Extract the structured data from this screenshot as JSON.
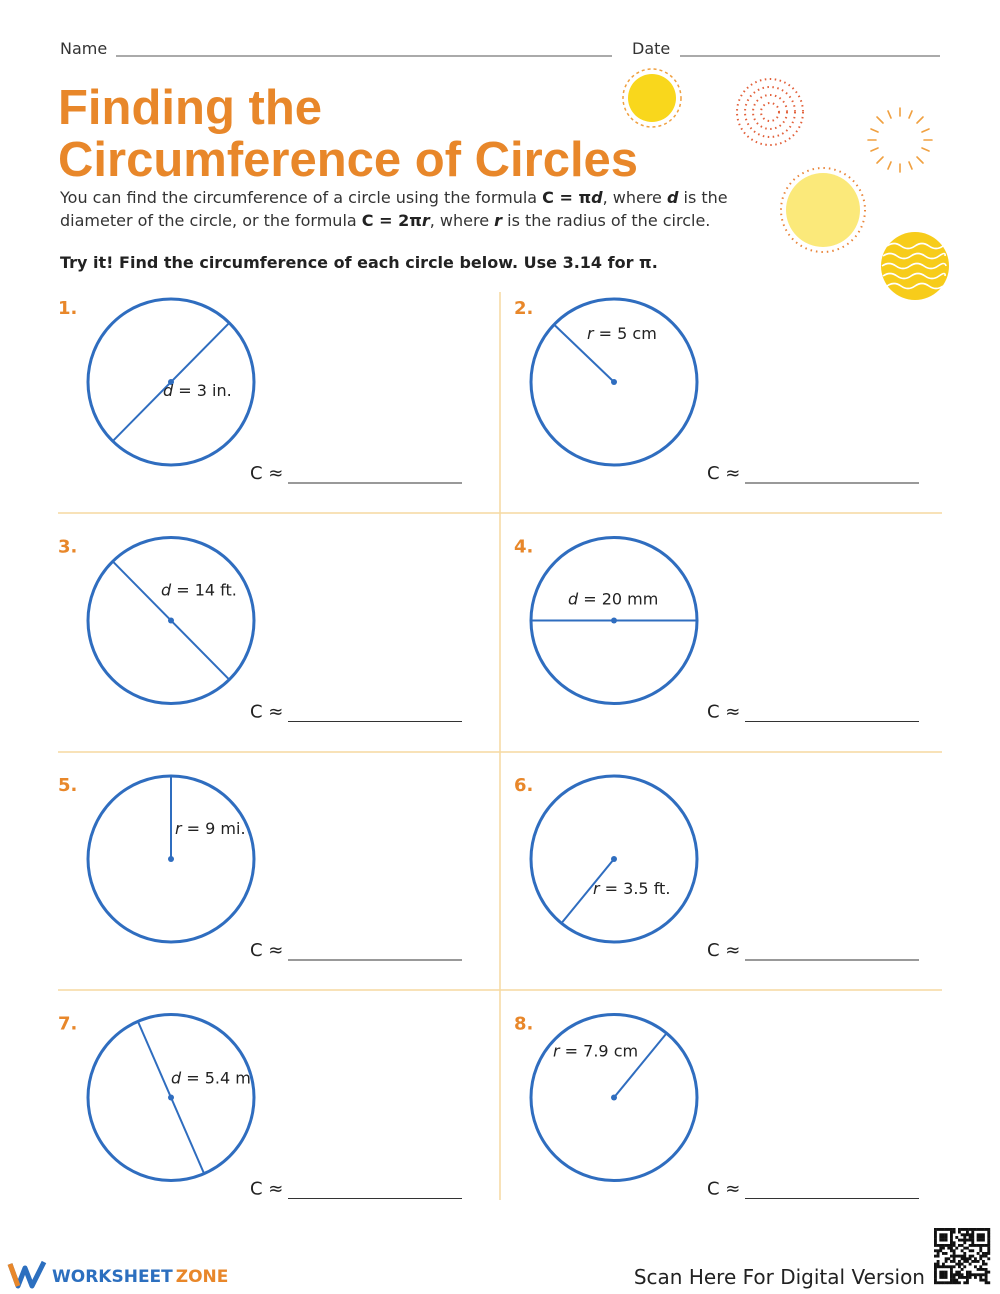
{
  "header": {
    "name_label": "Name",
    "date_label": "Date"
  },
  "title": [
    "Finding the",
    "Circumference of Circles"
  ],
  "intro": {
    "line1": [
      "You can find the circumference of a circle using the formula ",
      "C = π",
      "d",
      ", where ",
      "d",
      " is the"
    ],
    "line2": [
      "diameter of the circle, or the formula ",
      "C = 2π",
      "r",
      ", where ",
      "r",
      " is the radius of the circle."
    ]
  },
  "instructions": "Try it! Find the circumference of each circle below. Use 3.14 for π.",
  "problems": [
    {
      "number": "1.",
      "var": "d",
      "rest": " = 3 in.",
      "answer_label": "C ≈"
    },
    {
      "number": "2.",
      "var": "r",
      "rest": " = 5 cm",
      "answer_label": "C ≈"
    },
    {
      "number": "3.",
      "var": "d",
      "rest": " = 14 ft.",
      "answer_label": "C ≈"
    },
    {
      "number": "4.",
      "var": "d",
      "rest": " = 20 mm",
      "answer_label": "C ≈"
    },
    {
      "number": "5.",
      "var": "r",
      "rest": " = 9 mi.",
      "answer_label": "C ≈"
    },
    {
      "number": "6.",
      "var": "r",
      "rest": " = 3.5 ft.",
      "answer_label": "C ≈"
    },
    {
      "number": "7.",
      "var": "d",
      "rest": " = 5.4 m",
      "answer_label": "C ≈"
    },
    {
      "number": "8.",
      "var": "r",
      "rest": " = 7.9 cm",
      "answer_label": "C ≈"
    }
  ],
  "footer": {
    "brand_1": "WORKSHEET",
    "brand_2": "ZONE",
    "scan_text": "Scan Here For Digital Version"
  }
}
